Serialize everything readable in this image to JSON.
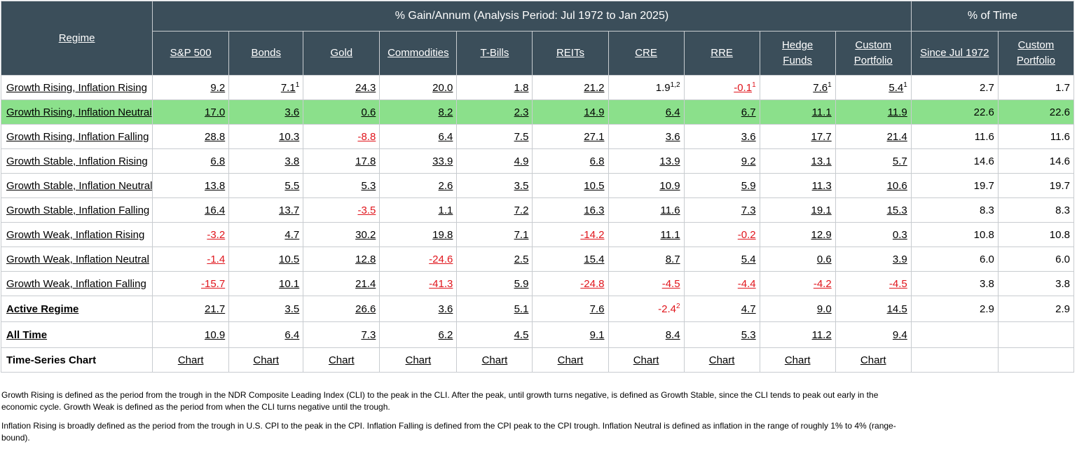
{
  "header": {
    "regime_label": "Regime",
    "gain_group_label": "% Gain/Annum (Analysis Period: Jul 1972 to Jan 2025)",
    "time_group_label": "% of Time",
    "asset_columns": [
      "S&P 500",
      "Bonds",
      "Gold",
      "Commodities",
      "T-Bills",
      "REITs",
      "CRE",
      "RRE",
      "Hedge Funds",
      "Custom Portfolio"
    ],
    "time_columns": [
      "Since Jul 1972",
      "Custom Portfolio"
    ]
  },
  "rows": [
    {
      "regime": "Growth Rising, Inflation Rising",
      "values": [
        "9.2",
        "7.1",
        "24.3",
        "20.0",
        "1.8",
        "21.2",
        "1.9",
        "-0.1",
        "7.6",
        "5.4"
      ],
      "footnotes": [
        "",
        "1",
        "",
        "",
        "",
        "",
        "1,2",
        "1",
        "1",
        "1"
      ],
      "time": [
        "2.7",
        "1.7"
      ]
    },
    {
      "regime": "Growth Rising, Inflation Neutral",
      "values": [
        "17.0",
        "3.6",
        "0.6",
        "8.2",
        "2.3",
        "14.9",
        "6.4",
        "6.7",
        "11.1",
        "11.9"
      ],
      "footnotes": [
        "",
        "",
        "",
        "",
        "",
        "",
        "",
        "",
        "",
        ""
      ],
      "time": [
        "22.6",
        "22.6"
      ]
    },
    {
      "regime": "Growth Rising, Inflation Falling",
      "values": [
        "28.8",
        "10.3",
        "-8.8",
        "6.4",
        "7.5",
        "27.1",
        "3.6",
        "3.6",
        "17.7",
        "21.4"
      ],
      "footnotes": [
        "",
        "",
        "",
        "",
        "",
        "",
        "",
        "",
        "",
        ""
      ],
      "time": [
        "11.6",
        "11.6"
      ]
    },
    {
      "regime": "Growth Stable, Inflation Rising",
      "values": [
        "6.8",
        "3.8",
        "17.8",
        "33.9",
        "4.9",
        "6.8",
        "13.9",
        "9.2",
        "13.1",
        "5.7"
      ],
      "footnotes": [
        "",
        "",
        "",
        "",
        "",
        "",
        "",
        "",
        "",
        ""
      ],
      "time": [
        "14.6",
        "14.6"
      ]
    },
    {
      "regime": "Growth Stable, Inflation Neutral",
      "values": [
        "13.8",
        "5.5",
        "5.3",
        "2.6",
        "3.5",
        "10.5",
        "10.9",
        "5.9",
        "11.3",
        "10.6"
      ],
      "footnotes": [
        "",
        "",
        "",
        "",
        "",
        "",
        "",
        "",
        "",
        ""
      ],
      "time": [
        "19.7",
        "19.7"
      ]
    },
    {
      "regime": "Growth Stable, Inflation Falling",
      "values": [
        "16.4",
        "13.7",
        "-3.5",
        "1.1",
        "7.2",
        "16.3",
        "11.6",
        "7.3",
        "19.1",
        "15.3"
      ],
      "footnotes": [
        "",
        "",
        "",
        "",
        "",
        "",
        "",
        "",
        "",
        ""
      ],
      "time": [
        "8.3",
        "8.3"
      ]
    },
    {
      "regime": "Growth Weak, Inflation Rising",
      "values": [
        "-3.2",
        "4.7",
        "30.2",
        "19.8",
        "7.1",
        "-14.2",
        "11.1",
        "-0.2",
        "12.9",
        "0.3"
      ],
      "footnotes": [
        "",
        "",
        "",
        "",
        "",
        "",
        "",
        "",
        "",
        ""
      ],
      "time": [
        "10.8",
        "10.8"
      ]
    },
    {
      "regime": "Growth Weak, Inflation Neutral",
      "values": [
        "-1.4",
        "10.5",
        "12.8",
        "-24.6",
        "2.5",
        "15.4",
        "8.7",
        "5.4",
        "0.6",
        "3.9"
      ],
      "footnotes": [
        "",
        "",
        "",
        "",
        "",
        "",
        "",
        "",
        "",
        ""
      ],
      "time": [
        "6.0",
        "6.0"
      ]
    },
    {
      "regime": "Growth Weak, Inflation Falling",
      "values": [
        "-15.7",
        "10.1",
        "21.4",
        "-41.3",
        "5.9",
        "-24.8",
        "-4.5",
        "-4.4",
        "-4.2",
        "-4.5"
      ],
      "footnotes": [
        "",
        "",
        "",
        "",
        "",
        "",
        "",
        "",
        "",
        ""
      ],
      "time": [
        "3.8",
        "3.8"
      ]
    },
    {
      "regime": "Active Regime",
      "values": [
        "21.7",
        "3.5",
        "26.6",
        "3.6",
        "5.1",
        "7.6",
        "-2.4",
        "4.7",
        "9.0",
        "14.5"
      ],
      "footnotes": [
        "",
        "",
        "",
        "",
        "",
        "",
        "2",
        "",
        "",
        ""
      ],
      "time": [
        "2.9",
        "2.9"
      ]
    },
    {
      "regime": "All Time",
      "values": [
        "10.9",
        "6.4",
        "7.3",
        "6.2",
        "4.5",
        "9.1",
        "8.4",
        "5.3",
        "11.2",
        "9.4"
      ],
      "footnotes": [
        "",
        "",
        "",
        "",
        "",
        "",
        "",
        "",
        "",
        ""
      ],
      "time": [
        "",
        ""
      ]
    }
  ],
  "chart_row": {
    "label": "Time-Series Chart",
    "link_label": "Chart"
  },
  "notes": [
    "Growth Rising is defined as the period from the trough in the NDR Composite Leading Index (CLI) to the peak in the CLI. After the peak, until growth turns negative, is defined as Growth Stable, since the CLI tends to peak out early in the economic cycle. Growth Weak is defined as the period from when the CLI turns negative until the trough.",
    "Inflation Rising is broadly defined as the period from the trough in U.S. CPI to the peak in the CPI. Inflation Falling is defined from the CPI peak to the CPI trough. Inflation Neutral is defined as inflation in the range of roughly 1% to 4% (range-bound)."
  ],
  "colors": {
    "header_bg": "#3b4e5a",
    "highlight_row": "#8be08b",
    "negative_text": "#e0151c"
  }
}
